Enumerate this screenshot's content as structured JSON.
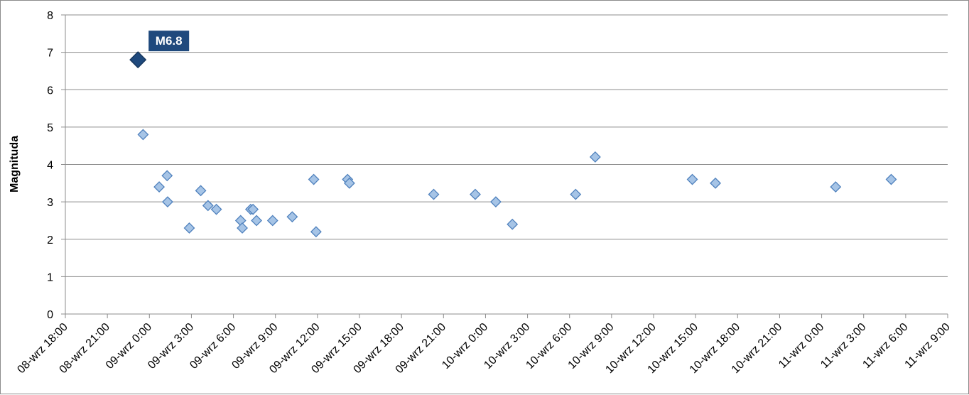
{
  "chart_data": {
    "type": "scatter",
    "title": "",
    "xlabel": "",
    "ylabel": "Magnituda",
    "xlim": [
      "2023-09-08T18:00",
      "2023-09-11T09:00"
    ],
    "ylim": [
      0,
      8
    ],
    "y_ticks": [
      0,
      1,
      2,
      3,
      4,
      5,
      6,
      7,
      8
    ],
    "x_ticks": [
      "08-wrz 18:00",
      "08-wrz 21:00",
      "09-wrz 0:00",
      "09-wrz 3:00",
      "09-wrz 6:00",
      "09-wrz 9:00",
      "09-wrz 12:00",
      "09-wrz 15:00",
      "09-wrz 18:00",
      "09-wrz 21:00",
      "10-wrz 0:00",
      "10-wrz 3:00",
      "10-wrz 6:00",
      "10-wrz 9:00",
      "10-wrz 12:00",
      "10-wrz 15:00",
      "10-wrz 18:00",
      "10-wrz 21:00",
      "11-wrz 0:00",
      "11-wrz 3:00",
      "11-wrz 6:00",
      "11-wrz 9:00"
    ],
    "grid": "horizontal",
    "legend": "none",
    "colors": {
      "marker_fill": "#a6c4e6",
      "marker_stroke": "#4f81bd",
      "highlight": "#1f497d",
      "gridline": "#8c8c8c"
    },
    "highlight_point": {
      "x": "2023-09-08T23:11",
      "y": 6.8,
      "label": "M6.8"
    },
    "points": [
      {
        "x": "2023-09-08T23:33",
        "y": 4.8
      },
      {
        "x": "2023-09-09T00:42",
        "y": 3.4
      },
      {
        "x": "2023-09-09T01:16",
        "y": 3.7
      },
      {
        "x": "2023-09-09T01:18",
        "y": 3.0
      },
      {
        "x": "2023-09-09T02:51",
        "y": 2.3
      },
      {
        "x": "2023-09-09T03:40",
        "y": 3.3
      },
      {
        "x": "2023-09-09T04:11",
        "y": 2.9
      },
      {
        "x": "2023-09-09T04:47",
        "y": 2.8
      },
      {
        "x": "2023-09-09T06:31",
        "y": 2.5
      },
      {
        "x": "2023-09-09T06:38",
        "y": 2.3
      },
      {
        "x": "2023-09-09T07:14",
        "y": 2.8
      },
      {
        "x": "2023-09-09T07:24",
        "y": 2.8
      },
      {
        "x": "2023-09-09T07:39",
        "y": 2.5
      },
      {
        "x": "2023-09-09T08:48",
        "y": 2.5
      },
      {
        "x": "2023-09-09T10:12",
        "y": 2.6
      },
      {
        "x": "2023-09-09T11:44",
        "y": 3.6
      },
      {
        "x": "2023-09-09T11:54",
        "y": 2.2
      },
      {
        "x": "2023-09-09T14:09",
        "y": 3.6
      },
      {
        "x": "2023-09-09T14:17",
        "y": 3.5
      },
      {
        "x": "2023-09-09T20:18",
        "y": 3.2
      },
      {
        "x": "2023-09-09T23:16",
        "y": 3.2
      },
      {
        "x": "2023-09-10T00:44",
        "y": 3.0
      },
      {
        "x": "2023-09-10T01:55",
        "y": 2.4
      },
      {
        "x": "2023-09-10T06:26",
        "y": 3.2
      },
      {
        "x": "2023-09-10T07:50",
        "y": 4.2
      },
      {
        "x": "2023-09-10T14:46",
        "y": 3.6
      },
      {
        "x": "2023-09-10T16:25",
        "y": 3.5
      },
      {
        "x": "2023-09-11T01:00",
        "y": 3.4
      },
      {
        "x": "2023-09-11T04:58",
        "y": 3.6
      }
    ]
  }
}
